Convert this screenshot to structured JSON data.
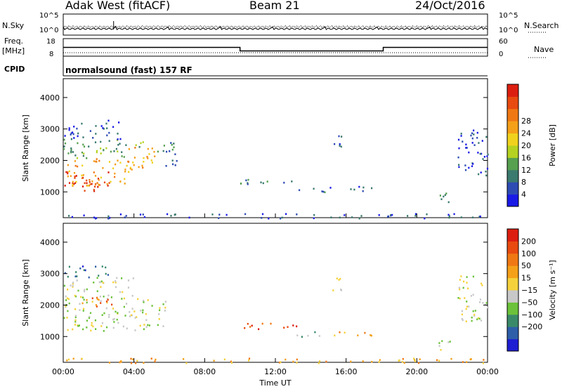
{
  "header": {
    "station": "Adak West (fitACF)",
    "beam": "Beam 21",
    "date": "24/Oct/2016"
  },
  "noise_panel": {
    "left_label": "N.Sky",
    "right_label": "N.Search",
    "left_ticks": [
      "10^5",
      "10^0"
    ],
    "right_ticks": [
      "10^5",
      "10^0"
    ]
  },
  "freq_panel": {
    "left_label_1": "Freq.",
    "left_label_2": "[MHz]",
    "left_ticks": [
      "18",
      "8"
    ],
    "right_label": "Nave",
    "right_ticks": [
      "60",
      "0"
    ],
    "freq_steps": [
      {
        "t": 0.6,
        "mhz": 13
      },
      {
        "t": 10.0,
        "mhz": 11
      },
      {
        "t": 18.1,
        "mhz": 13
      },
      {
        "t": 24.0,
        "mhz": 13
      }
    ]
  },
  "cpid": {
    "label": "CPID",
    "text": "normalsound (fast) 157 RF"
  },
  "chart_data": [
    {
      "type": "heatmap",
      "title": "Power",
      "ylabel": "Slant Range [km]",
      "xlabel": "Time UT",
      "yticks": [
        "1000",
        "2000",
        "3000",
        "4000"
      ],
      "xticks": [
        "00:00",
        "04:00",
        "08:00",
        "12:00",
        "16:00",
        "20:00",
        "00:00"
      ],
      "ylim": [
        180,
        4600
      ],
      "xlim": [
        0,
        24
      ],
      "colorbar": {
        "label": "Power [dB]",
        "ticks": [
          "4",
          "8",
          "12",
          "16",
          "20",
          "24",
          "28"
        ],
        "colors": [
          "#1a1ae6",
          "#2e4bb3",
          "#3b7a6e",
          "#56a050",
          "#b5d220",
          "#f0d21e",
          "#f5a019",
          "#f07814",
          "#e84a10",
          "#dc1e10"
        ]
      },
      "regions": [
        {
          "t0": 0.0,
          "t1": 2.6,
          "r0": 1000,
          "r1": 1700,
          "level": 9
        },
        {
          "t0": 0.2,
          "t1": 3.8,
          "r0": 1200,
          "r1": 2100,
          "level": 6
        },
        {
          "t0": 3.4,
          "t1": 5.2,
          "r0": 1700,
          "r1": 2450,
          "level": 6
        },
        {
          "t0": 0.0,
          "t1": 4.5,
          "r0": 2100,
          "r1": 2700,
          "level": 3
        },
        {
          "t0": 0.0,
          "t1": 3.2,
          "r0": 2700,
          "r1": 3300,
          "level": 1
        },
        {
          "t0": 5.2,
          "t1": 6.4,
          "r0": 1800,
          "r1": 2600,
          "level": 2
        },
        {
          "t0": 10.0,
          "t1": 13.2,
          "r0": 1250,
          "r1": 1450,
          "level": 2
        },
        {
          "t0": 13.2,
          "t1": 14.8,
          "r0": 1000,
          "r1": 1200,
          "level": 2
        },
        {
          "t0": 14.8,
          "t1": 17.6,
          "r0": 1050,
          "r1": 1200,
          "level": 1
        },
        {
          "t0": 15.2,
          "t1": 15.9,
          "r0": 2400,
          "r1": 2900,
          "level": 1
        },
        {
          "t0": 21.2,
          "t1": 22.1,
          "r0": 600,
          "r1": 1000,
          "level": 2
        },
        {
          "t0": 22.3,
          "t1": 24.0,
          "r0": 1500,
          "r1": 3000,
          "level": 1
        },
        {
          "t0": 0.0,
          "t1": 24.0,
          "r0": 180,
          "r1": 330,
          "level": 1
        }
      ]
    },
    {
      "type": "heatmap",
      "title": "Velocity",
      "ylabel": "Slant Range [km]",
      "xlabel": "Time UT",
      "yticks": [
        "1000",
        "2000",
        "3000",
        "4000"
      ],
      "xticks": [
        "00:00",
        "04:00",
        "08:00",
        "12:00",
        "16:00",
        "20:00",
        "00:00"
      ],
      "ylim": [
        180,
        4600
      ],
      "xlim": [
        0,
        24
      ],
      "colorbar": {
        "label": "Velocity [m s⁻¹]",
        "ticks": [
          "200",
          "100",
          "50",
          "15",
          "−15",
          "−50",
          "−100",
          "−200"
        ],
        "colors": [
          "#1e1ed2",
          "#2e5ea8",
          "#3a8a6a",
          "#6cc23a",
          "#c8c8c8",
          "#f5d23c",
          "#f5a019",
          "#f07814",
          "#e84a10",
          "#dc1e10"
        ]
      },
      "regions": [
        {
          "t0": 0.0,
          "t1": 5.8,
          "r0": 1200,
          "r1": 2200,
          "level": 4
        },
        {
          "t0": 0.0,
          "t1": 4.2,
          "r0": 2200,
          "r1": 2900,
          "level": 4
        },
        {
          "t0": 1.0,
          "t1": 2.8,
          "r0": 1950,
          "r1": 2350,
          "level": 7
        },
        {
          "t0": 0.0,
          "t1": 2.5,
          "r0": 2900,
          "r1": 3300,
          "level": 1
        },
        {
          "t0": 10.0,
          "t1": 13.2,
          "r0": 1250,
          "r1": 1450,
          "level": 8
        },
        {
          "t0": 13.2,
          "t1": 14.8,
          "r0": 1000,
          "r1": 1200,
          "level": 3
        },
        {
          "t0": 14.8,
          "t1": 17.6,
          "r0": 1050,
          "r1": 1200,
          "level": 6
        },
        {
          "t0": 15.2,
          "t1": 15.9,
          "r0": 2400,
          "r1": 2900,
          "level": 4
        },
        {
          "t0": 21.2,
          "t1": 22.1,
          "r0": 600,
          "r1": 1000,
          "level": 4
        },
        {
          "t0": 22.3,
          "t1": 24.0,
          "r0": 1500,
          "r1": 3000,
          "level": 4
        },
        {
          "t0": 0.0,
          "t1": 24.0,
          "r0": 180,
          "r1": 330,
          "level": 6
        }
      ]
    }
  ],
  "x_axis": {
    "ticks": [
      "00:00",
      "04:00",
      "08:00",
      "12:00",
      "16:00",
      "20:00",
      "00:00"
    ],
    "label": "Time UT"
  }
}
